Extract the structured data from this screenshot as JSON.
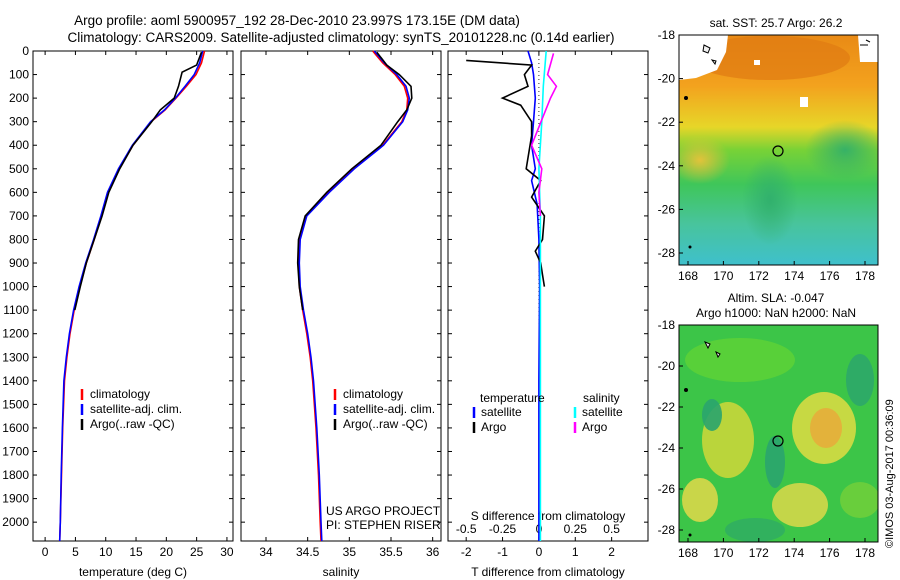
{
  "header": {
    "line1": "Argo profile: aoml 5900957_192 28-Dec-2010 23.997S 173.15E (DM data)",
    "line2": "Climatology: CARS2009. Satellite-adjusted climatology: synTS_20101228.nc (0.14d earlier)"
  },
  "colors": {
    "climatology": "#ff0000",
    "satellite": "#0000ff",
    "argo": "#000000",
    "argo_salinity": "#ff00ff",
    "satellite_salinity": "#00ffff"
  },
  "chart_data": [
    {
      "id": "temperature",
      "type": "line",
      "xlabel": "temperature (deg C)",
      "ylabel": "",
      "xlim": [
        -2,
        31
      ],
      "ylim": [
        2080,
        0
      ],
      "xticks": [
        0,
        5,
        10,
        15,
        20,
        25,
        30
      ],
      "yticks": [
        0,
        100,
        200,
        300,
        400,
        500,
        600,
        700,
        800,
        900,
        1000,
        1100,
        1200,
        1300,
        1400,
        1500,
        1600,
        1700,
        1800,
        1900,
        2000
      ],
      "legend": [
        "climatology",
        "satellite-adj. clim.",
        "Argo(..raw -QC)"
      ],
      "series": [
        {
          "name": "climatology",
          "color": "#ff0000",
          "x": [
            26.3,
            25.8,
            24.9,
            23.3,
            21.6,
            19.8,
            17.5,
            14.5,
            12.2,
            10.4,
            9.3,
            8.1,
            6.8,
            5.7,
            4.8,
            4.1,
            3.6,
            3.2,
            2.9,
            2.7,
            2.5,
            2.4
          ],
          "y": [
            0,
            50,
            100,
            150,
            200,
            250,
            300,
            400,
            500,
            600,
            700,
            800,
            900,
            1000,
            1100,
            1200,
            1300,
            1400,
            1600,
            1800,
            2000,
            2080
          ]
        },
        {
          "name": "satellite-adj. clim.",
          "color": "#0000ff",
          "x": [
            26.0,
            25.5,
            24.6,
            23.1,
            21.5,
            19.7,
            17.4,
            14.4,
            12.1,
            10.3,
            9.2,
            8.0,
            6.7,
            5.6,
            4.7,
            4.0,
            3.5,
            3.1,
            2.85,
            2.65,
            2.5,
            2.4
          ],
          "y": [
            0,
            50,
            100,
            150,
            200,
            250,
            300,
            400,
            500,
            600,
            700,
            800,
            900,
            1000,
            1100,
            1200,
            1300,
            1400,
            1600,
            1800,
            2000,
            2080
          ]
        },
        {
          "name": "Argo(..raw -QC)",
          "color": "#000000",
          "x": [
            25.8,
            25.0,
            22.6,
            22.0,
            21.3,
            19.0,
            17.6,
            14.5,
            12.3,
            10.5,
            9.4,
            8.1,
            6.8,
            5.8,
            4.9
          ],
          "y": [
            5,
            60,
            90,
            150,
            200,
            250,
            300,
            400,
            500,
            600,
            700,
            800,
            900,
            1000,
            1100
          ]
        }
      ]
    },
    {
      "id": "salinity",
      "type": "line",
      "xlabel": "salinity",
      "xlim": [
        33.7,
        36.1
      ],
      "ylim": [
        2080,
        0
      ],
      "xticks": [
        34,
        34.5,
        35,
        35.5,
        36
      ],
      "legend": [
        "climatology",
        "satellite-adj. clim.",
        "Argo(..raw -QC)"
      ],
      "series": [
        {
          "name": "climatology",
          "color": "#ff0000",
          "x": [
            35.28,
            35.4,
            35.55,
            35.66,
            35.7,
            35.69,
            35.63,
            35.4,
            35.05,
            34.75,
            34.48,
            34.4,
            34.39,
            34.4,
            34.44,
            34.49,
            34.53,
            34.56,
            34.6,
            34.63,
            34.65,
            34.66
          ],
          "y": [
            0,
            50,
            100,
            150,
            200,
            250,
            300,
            400,
            500,
            600,
            700,
            800,
            900,
            1000,
            1100,
            1200,
            1300,
            1400,
            1600,
            1800,
            2000,
            2080
          ]
        },
        {
          "name": "satellite-adj. clim.",
          "color": "#0000ff",
          "x": [
            35.3,
            35.42,
            35.57,
            35.68,
            35.72,
            35.7,
            35.64,
            35.41,
            35.06,
            34.76,
            34.49,
            34.41,
            34.4,
            34.41,
            34.45,
            34.5,
            34.54,
            34.57,
            34.61,
            34.64,
            34.66,
            34.67
          ],
          "y": [
            0,
            50,
            100,
            150,
            200,
            250,
            300,
            400,
            500,
            600,
            700,
            800,
            900,
            1000,
            1100,
            1200,
            1300,
            1400,
            1600,
            1800,
            2000,
            2080
          ]
        },
        {
          "name": "Argo(..raw -QC)",
          "color": "#000000",
          "x": [
            35.33,
            35.45,
            35.6,
            35.74,
            35.75,
            35.69,
            35.58,
            35.38,
            35.03,
            34.73,
            34.47,
            34.39,
            34.38,
            34.4,
            34.44
          ],
          "y": [
            5,
            60,
            100,
            150,
            200,
            250,
            300,
            400,
            500,
            600,
            700,
            800,
            900,
            1000,
            1100
          ]
        }
      ],
      "annotation": [
        "US ARGO PROJECT",
        "PI: STEPHEN RISER"
      ]
    },
    {
      "id": "differences",
      "type": "line",
      "xlabel": "T difference from climatology",
      "xlabel_top": "S difference from climatology",
      "xlim": [
        -2.5,
        3
      ],
      "ylim": [
        2080,
        0
      ],
      "xticks": [
        -2,
        -1,
        0,
        1,
        2
      ],
      "xticks_top": [
        -0.5,
        -0.25,
        0,
        0.25,
        0.5
      ],
      "legend": {
        "temperature": [
          "satellite",
          "Argo"
        ],
        "salinity": [
          "satellite",
          "Argo"
        ]
      },
      "legend_headers": [
        "temperature",
        "salinity"
      ],
      "series": [
        {
          "name": "T satellite",
          "color": "#0000ff",
          "x": [
            -0.3,
            -0.2,
            -0.15,
            -0.1,
            -0.15,
            -0.2,
            -0.1,
            -0.2,
            -0.05,
            0.0,
            0.02,
            0.0,
            0.0,
            0.0
          ],
          "y": [
            0,
            50,
            100,
            200,
            300,
            400,
            500,
            550,
            650,
            800,
            1000,
            1400,
            1800,
            2080
          ]
        },
        {
          "name": "T Argo",
          "color": "#000000",
          "x": [
            -2.0,
            -0.2,
            -0.4,
            -0.3,
            -1.0,
            -0.5,
            -0.2,
            -0.2,
            -0.35,
            0.05,
            -0.2,
            0.15,
            0.1,
            -0.1,
            0.05,
            0.1,
            0.15
          ],
          "y": [
            40,
            60,
            100,
            150,
            200,
            230,
            300,
            360,
            500,
            550,
            620,
            700,
            800,
            850,
            900,
            950,
            1000
          ]
        },
        {
          "name": "S satellite",
          "color": "#00ffff",
          "x": [
            0.05,
            0.03,
            0.02,
            0.0,
            0.01,
            0.01,
            0.01,
            0.01,
            0.01,
            0.01
          ],
          "y": [
            0,
            150,
            300,
            500,
            700,
            1000,
            1300,
            1600,
            1900,
            2080
          ]
        },
        {
          "name": "S Argo",
          "color": "#ff00ff",
          "x": [
            0.1,
            0.06,
            0.12,
            0.08,
            -0.05,
            0.02,
            0.0,
            0.01
          ],
          "y": [
            10,
            100,
            150,
            200,
            400,
            500,
            600,
            700
          ]
        }
      ]
    }
  ],
  "sst_map": {
    "title": "sat. SST: 25.7 Argo: 26.2",
    "xticks": [
      "168",
      "170",
      "172",
      "174",
      "176",
      "178"
    ],
    "yticks": [
      "-18",
      "-20",
      "-22",
      "-24",
      "-26",
      "-28"
    ]
  },
  "sla_map": {
    "title1": "Altim. SLA: -0.047",
    "title2": "Argo h1000: NaN h2000: NaN",
    "xticks": [
      "168",
      "170",
      "172",
      "174",
      "176",
      "178"
    ],
    "yticks": [
      "-18",
      "-20",
      "-22",
      "-24",
      "-26",
      "-28"
    ]
  },
  "credit": "©IMOS 03-Aug-2017 00:36:09"
}
